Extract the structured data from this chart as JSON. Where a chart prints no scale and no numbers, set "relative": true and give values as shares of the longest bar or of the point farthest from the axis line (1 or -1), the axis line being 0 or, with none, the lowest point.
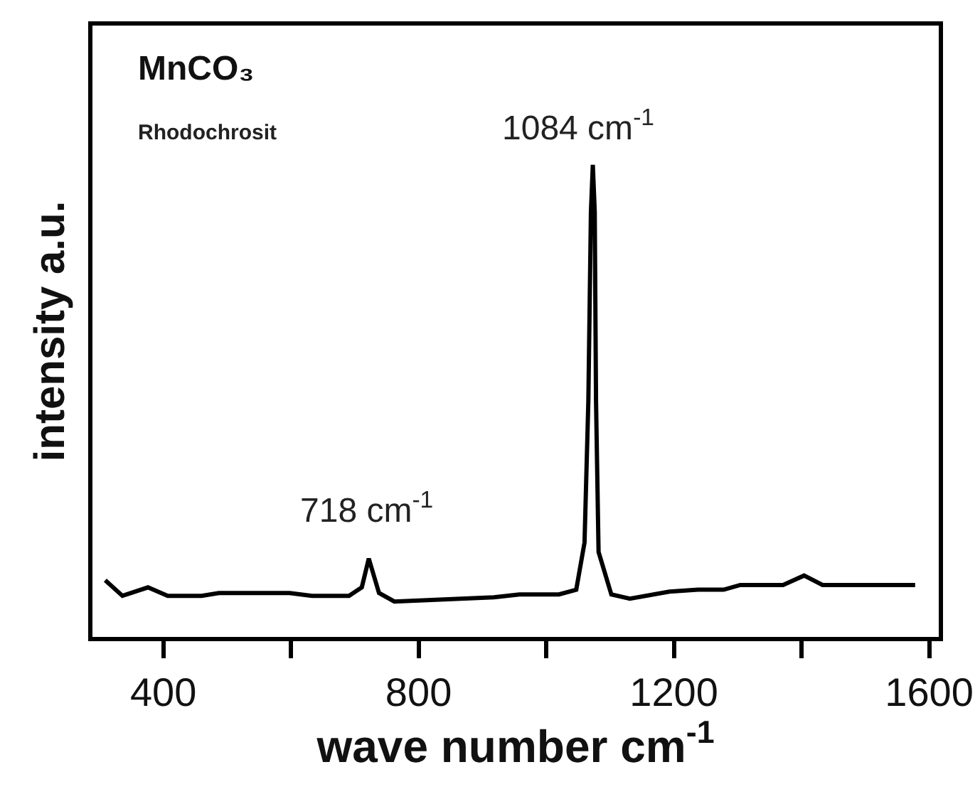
{
  "chart_data": {
    "type": "line",
    "title": "MnCO₃",
    "subtitle": "Rhodochrosit",
    "xlabel": "wave number cm$^{-1}$",
    "ylabel": "intensity a.u.",
    "relative": true,
    "tick_labels": "x",
    "grid": false,
    "marker": "none",
    "line_style": "solid",
    "xlim": [
      289,
      1615
    ],
    "xticks": [
      400,
      {
        "value": 600,
        "label": null
      },
      800,
      {
        "value": 1000,
        "label": null
      },
      1200,
      {
        "value": 1400,
        "label": null
      },
      1600
    ],
    "x": [
      309,
      336,
      376,
      407,
      460,
      487,
      598,
      633,
      691,
      711,
      722,
      738,
      762,
      918,
      958,
      1020,
      1047,
      1060,
      1066,
      1070,
      1073,
      1076,
      1078,
      1082,
      1102,
      1131,
      1193,
      1238,
      1278,
      1304,
      1371,
      1404,
      1433,
      1578
    ],
    "series": [
      {
        "color": "#000000",
        "values": [
          0.12,
          0.087,
          0.105,
          0.087,
          0.087,
          0.093,
          0.093,
          0.087,
          0.087,
          0.105,
          0.166,
          0.093,
          0.075,
          0.084,
          0.09,
          0.09,
          0.1,
          0.2,
          0.5,
          0.9,
          1,
          0.9,
          0.5,
          0.18,
          0.09,
          0.081,
          0.096,
          0.1,
          0.1,
          0.11,
          0.11,
          0.13,
          0.11,
          0.11
        ]
      }
    ],
    "annotations": [
      {
        "text": "718 cm$^{-1}$",
        "x": 718,
        "y": 0.166
      },
      {
        "text": "1084 cm$^{-1}$",
        "x": 1084,
        "y": 1
      }
    ]
  }
}
